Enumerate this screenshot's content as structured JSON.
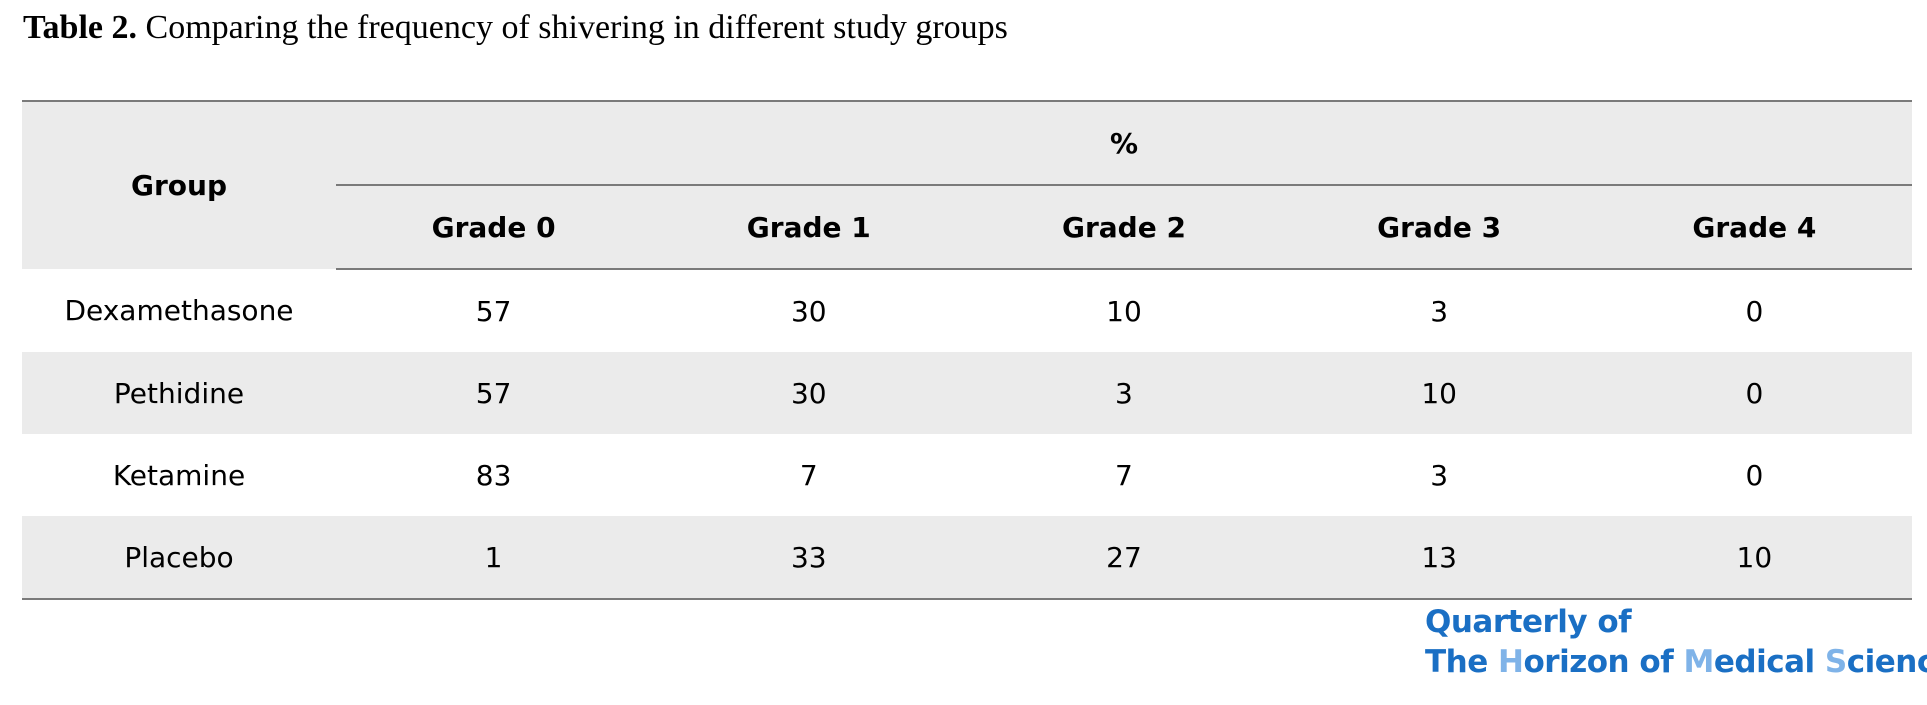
{
  "caption": {
    "label": "Table 2.",
    "text": " Comparing the frequency of shivering in different study groups"
  },
  "table": {
    "group_header": "Group",
    "percent_header": "%",
    "grade_headers": [
      "Grade 0",
      "Grade 1",
      "Grade 2",
      "Grade 3",
      "Grade 4"
    ],
    "rows": [
      {
        "group": "Dexamethasone",
        "values": [
          "57",
          "30",
          "10",
          "3",
          "0"
        ]
      },
      {
        "group": "Pethidine",
        "values": [
          "57",
          "30",
          "3",
          "10",
          "0"
        ]
      },
      {
        "group": "Ketamine",
        "values": [
          "83",
          "7",
          "7",
          "3",
          "0"
        ]
      },
      {
        "group": "Placebo",
        "values": [
          "1",
          "33",
          "27",
          "13",
          "10"
        ]
      }
    ]
  },
  "logo": {
    "line1": "Quarterly of",
    "line2_parts": [
      "The ",
      "H",
      "orizon of ",
      "M",
      "edical ",
      "S",
      "ciences"
    ],
    "primary_color": "#1a6fc4",
    "highlight_color": "#7fb3e8"
  }
}
